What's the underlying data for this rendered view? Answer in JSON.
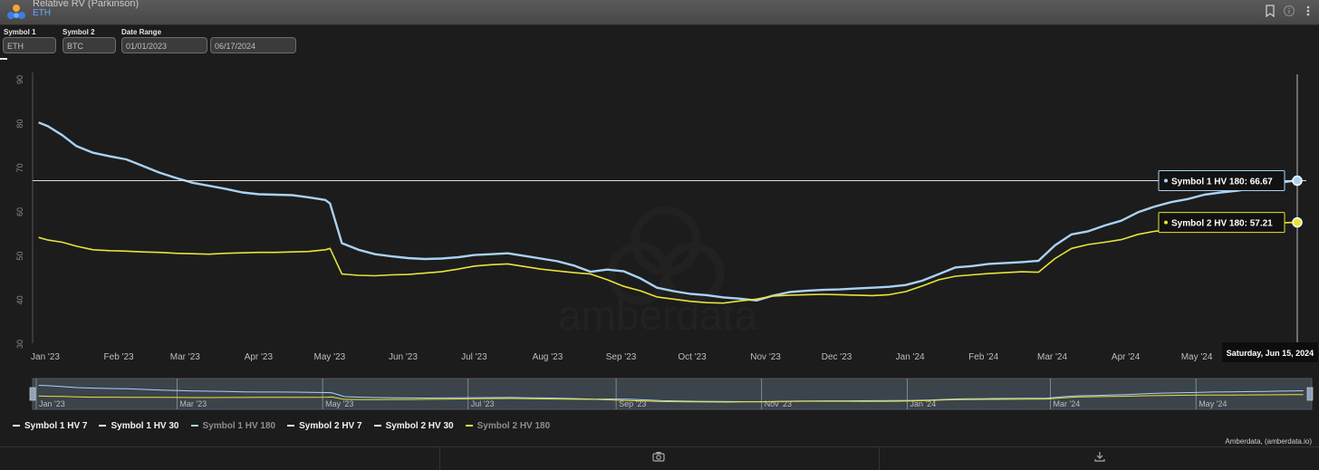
{
  "app": {
    "title": "Relative RV (Parkinson)",
    "subtitle": "ETH",
    "logo_icon": "amberdata-logo-icon",
    "toolbar_icons": [
      "bookmark-icon",
      "info-icon",
      "more-vertical-icon"
    ]
  },
  "filters": {
    "symbol1": {
      "label": "Symbol 1",
      "value": "ETH"
    },
    "symbol2": {
      "label": "Symbol 2",
      "value": "BTC"
    },
    "date_range": {
      "label": "Date Range",
      "start": "01/01/2023",
      "end": "06/17/2024"
    }
  },
  "chart_data": {
    "type": "line",
    "title": "",
    "xlabel": "",
    "ylabel": "",
    "x_range": [
      "2023-01-01",
      "2024-06-17"
    ],
    "ylim": [
      30,
      90
    ],
    "y_ticks": [
      30,
      40,
      50,
      60,
      70,
      80,
      90
    ],
    "x_ticks": [
      "Jan '23",
      "Feb '23",
      "Mar '23",
      "Apr '23",
      "May '23",
      "Jun '23",
      "Jul '23",
      "Aug '23",
      "Sep '23",
      "Oct '23",
      "Nov '23",
      "Dec '23",
      "Jan '24",
      "Feb '24",
      "Mar '24",
      "Apr '24",
      "May '24"
    ],
    "navigator_ticks": [
      "Jan '23",
      "Mar '23",
      "May '23",
      "Jul '23",
      "Sep '23",
      "Nov '23",
      "Jan '24",
      "Mar '24",
      "May '24"
    ],
    "grid": false,
    "legend_position": "bottom-left",
    "series": [
      {
        "name": "Symbol 1 HV 7",
        "color": "#f2f2f2",
        "visible": false,
        "values": []
      },
      {
        "name": "Symbol 1 HV 30",
        "color": "#f2f2f2",
        "visible": false,
        "values": []
      },
      {
        "name": "Symbol 1 HV 180",
        "color": "#a9d2f5",
        "visible": true,
        "x": [
          "2023-01-02",
          "2023-01-06",
          "2023-01-12",
          "2023-01-18",
          "2023-01-25",
          "2023-02-01",
          "2023-02-08",
          "2023-02-15",
          "2023-02-22",
          "2023-03-01",
          "2023-03-08",
          "2023-03-15",
          "2023-03-22",
          "2023-03-29",
          "2023-04-05",
          "2023-04-12",
          "2023-04-19",
          "2023-04-26",
          "2023-05-03",
          "2023-05-05",
          "2023-05-10",
          "2023-05-17",
          "2023-05-24",
          "2023-05-31",
          "2023-06-07",
          "2023-06-14",
          "2023-06-21",
          "2023-06-28",
          "2023-07-05",
          "2023-07-12",
          "2023-07-19",
          "2023-07-26",
          "2023-08-02",
          "2023-08-09",
          "2023-08-16",
          "2023-08-23",
          "2023-08-30",
          "2023-09-06",
          "2023-09-13",
          "2023-09-20",
          "2023-09-27",
          "2023-10-04",
          "2023-10-11",
          "2023-10-18",
          "2023-10-25",
          "2023-11-01",
          "2023-11-08",
          "2023-11-15",
          "2023-11-22",
          "2023-11-29",
          "2023-12-06",
          "2023-12-13",
          "2023-12-20",
          "2023-12-27",
          "2024-01-03",
          "2024-01-10",
          "2024-01-17",
          "2024-01-24",
          "2024-01-31",
          "2024-02-07",
          "2024-02-14",
          "2024-02-21",
          "2024-02-28",
          "2024-03-06",
          "2024-03-13",
          "2024-03-20",
          "2024-03-27",
          "2024-04-03",
          "2024-04-10",
          "2024-04-17",
          "2024-04-24",
          "2024-05-01",
          "2024-05-08",
          "2024-05-15",
          "2024-05-22",
          "2024-05-29",
          "2024-06-05",
          "2024-06-10",
          "2024-06-15"
        ],
        "values": [
          79.9,
          79.0,
          77.0,
          74.5,
          73.0,
          72.2,
          71.5,
          70.0,
          68.5,
          67.3,
          66.2,
          65.5,
          64.8,
          64.0,
          63.6,
          63.5,
          63.4,
          62.9,
          62.3,
          61.5,
          52.5,
          51.0,
          50.0,
          49.5,
          49.1,
          48.9,
          49.0,
          49.3,
          49.8,
          50.0,
          50.2,
          49.6,
          49.0,
          48.4,
          47.4,
          46.0,
          46.5,
          46.1,
          44.5,
          42.4,
          41.6,
          41.0,
          40.7,
          40.2,
          39.9,
          39.5,
          40.6,
          41.4,
          41.7,
          41.9,
          42.0,
          42.2,
          42.4,
          42.6,
          43.0,
          44.0,
          45.5,
          47.0,
          47.3,
          47.8,
          48.0,
          48.2,
          48.5,
          52.0,
          54.5,
          55.2,
          56.5,
          57.6,
          59.5,
          60.8,
          61.8,
          62.5,
          63.5,
          64.0,
          64.4,
          65.0,
          65.8,
          66.3,
          66.67
        ]
      },
      {
        "name": "Symbol 2 HV 7",
        "color": "#f2f2f2",
        "visible": false,
        "values": []
      },
      {
        "name": "Symbol 2 HV 30",
        "color": "#f2f2f2",
        "visible": false,
        "values": []
      },
      {
        "name": "Symbol 2 HV 180",
        "color": "#e8e33a",
        "visible": true,
        "x": [
          "2023-01-02",
          "2023-01-06",
          "2023-01-12",
          "2023-01-18",
          "2023-01-25",
          "2023-02-01",
          "2023-02-08",
          "2023-02-15",
          "2023-02-22",
          "2023-03-01",
          "2023-03-08",
          "2023-03-15",
          "2023-03-22",
          "2023-03-29",
          "2023-04-05",
          "2023-04-12",
          "2023-04-19",
          "2023-04-26",
          "2023-05-03",
          "2023-05-05",
          "2023-05-10",
          "2023-05-17",
          "2023-05-24",
          "2023-05-31",
          "2023-06-07",
          "2023-06-14",
          "2023-06-21",
          "2023-06-28",
          "2023-07-05",
          "2023-07-12",
          "2023-07-19",
          "2023-07-26",
          "2023-08-02",
          "2023-08-09",
          "2023-08-16",
          "2023-08-23",
          "2023-08-30",
          "2023-09-06",
          "2023-09-13",
          "2023-09-20",
          "2023-09-27",
          "2023-10-04",
          "2023-10-11",
          "2023-10-18",
          "2023-10-25",
          "2023-11-01",
          "2023-11-08",
          "2023-11-15",
          "2023-11-22",
          "2023-11-29",
          "2023-12-06",
          "2023-12-13",
          "2023-12-20",
          "2023-12-27",
          "2024-01-03",
          "2024-01-10",
          "2024-01-17",
          "2024-01-24",
          "2024-01-31",
          "2024-02-07",
          "2024-02-14",
          "2024-02-21",
          "2024-02-28",
          "2024-03-06",
          "2024-03-13",
          "2024-03-20",
          "2024-03-27",
          "2024-04-03",
          "2024-04-10",
          "2024-04-17",
          "2024-04-24",
          "2024-05-01",
          "2024-05-08",
          "2024-05-15",
          "2024-05-22",
          "2024-05-29",
          "2024-06-05",
          "2024-06-10",
          "2024-06-15"
        ],
        "values": [
          53.8,
          53.2,
          52.7,
          51.8,
          51.0,
          50.8,
          50.7,
          50.5,
          50.4,
          50.2,
          50.1,
          50.0,
          50.2,
          50.3,
          50.4,
          50.4,
          50.5,
          50.6,
          51.0,
          51.3,
          45.5,
          45.2,
          45.1,
          45.3,
          45.4,
          45.7,
          46.0,
          46.6,
          47.3,
          47.6,
          47.8,
          47.2,
          46.6,
          46.2,
          45.8,
          45.5,
          44.2,
          42.7,
          41.7,
          40.3,
          39.8,
          39.3,
          39.0,
          38.9,
          39.4,
          39.8,
          40.5,
          40.7,
          40.8,
          40.9,
          40.8,
          40.7,
          40.6,
          40.8,
          41.5,
          42.8,
          44.2,
          45.0,
          45.3,
          45.6,
          45.8,
          46.0,
          45.9,
          49.0,
          51.3,
          52.2,
          52.7,
          53.3,
          54.5,
          55.2,
          55.6,
          56.0,
          56.2,
          56.3,
          56.5,
          56.7,
          56.9,
          57.1,
          57.21
        ]
      }
    ],
    "crosshair": {
      "y_value": 66.67,
      "date_label": "Saturday, Jun 15, 2024"
    },
    "tooltips": [
      {
        "label": "Symbol 1 HV 180: 66.67",
        "color": "#a9d2f5"
      },
      {
        "label": "Symbol 2 HV 180: 57.21",
        "color": "#e8e33a"
      }
    ],
    "watermark": "amberdata"
  },
  "credits": "Amberdata, (amberdata.io)",
  "bottom_toolbar": {
    "icons": [
      "camera-icon",
      "download-icon"
    ]
  }
}
